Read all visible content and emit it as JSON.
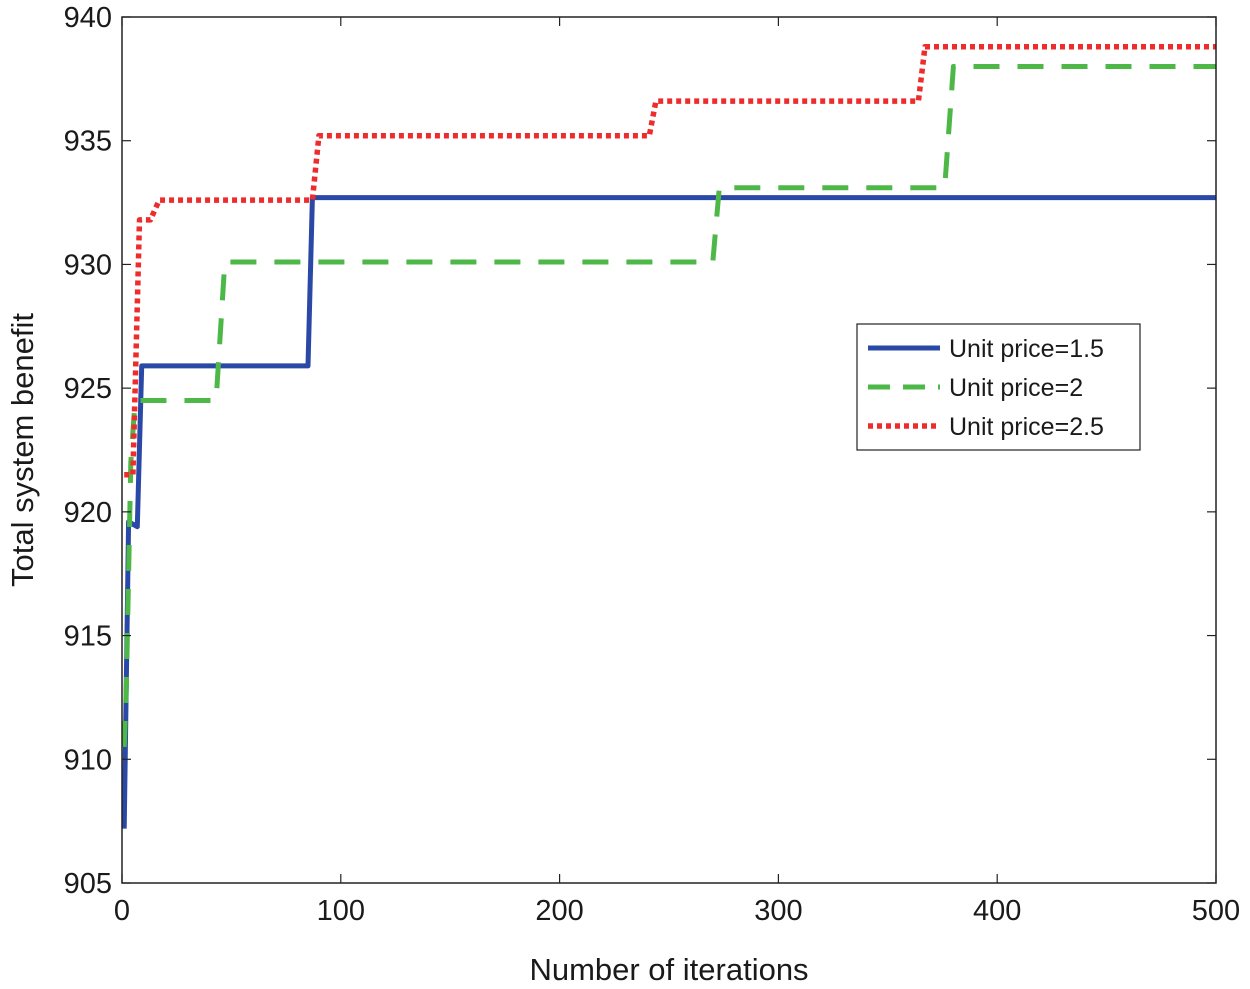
{
  "chart_data": {
    "type": "line",
    "title": "",
    "xlabel": "Number of iterations",
    "ylabel": "Total system benefit",
    "xlim": [
      0,
      500
    ],
    "ylim": [
      905,
      940
    ],
    "xticks": [
      0,
      100,
      200,
      300,
      400,
      500
    ],
    "yticks": [
      905,
      910,
      915,
      920,
      925,
      930,
      935,
      940
    ],
    "grid": false,
    "legend_position": "center-right",
    "series": [
      {
        "name": "Unit price=1.5",
        "color": "#2a48a6",
        "style": "solid",
        "x": [
          1,
          3,
          5,
          7,
          9,
          85,
          87,
          500
        ],
        "y": [
          907.2,
          919.6,
          919.5,
          919.4,
          925.9,
          925.9,
          932.7,
          932.7
        ]
      },
      {
        "name": "Unit price=2",
        "color": "#4db848",
        "style": "dashed",
        "x": [
          1,
          2,
          4,
          6,
          43,
          47,
          270,
          273,
          376,
          380,
          500
        ],
        "y": [
          910.5,
          913,
          922,
          924.5,
          924.5,
          930.1,
          930.1,
          933.1,
          933.1,
          938,
          938
        ]
      },
      {
        "name": "Unit price=2.5",
        "color": "#ee2c2c",
        "style": "dotted",
        "x": [
          1,
          5,
          8,
          13,
          17,
          87,
          90,
          241,
          244,
          364,
          367,
          500
        ],
        "y": [
          921.5,
          921.5,
          931.8,
          931.8,
          932.6,
          932.6,
          935.2,
          935.2,
          936.6,
          936.6,
          938.8,
          938.8
        ]
      }
    ]
  }
}
